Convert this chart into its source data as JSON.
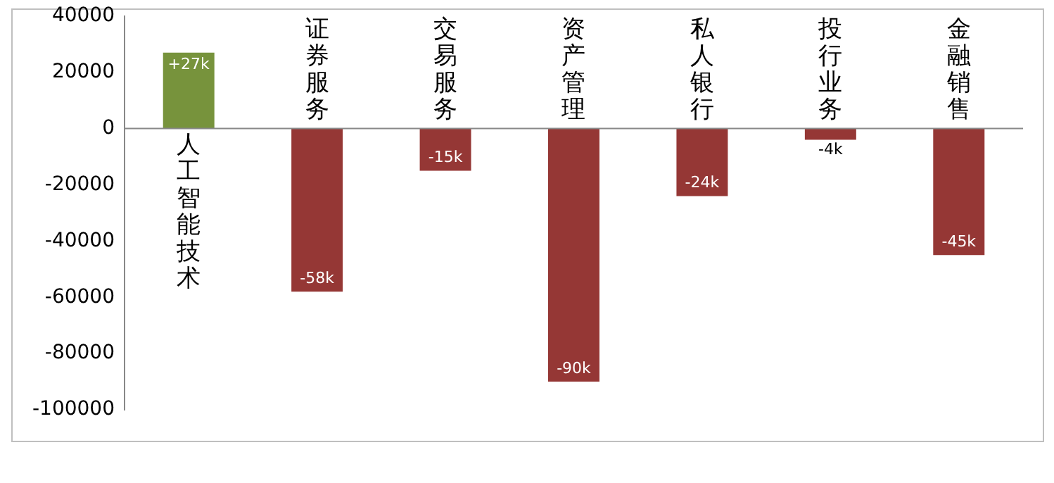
{
  "chart_data": {
    "type": "bar",
    "categories": [
      "人工智能技术",
      "证券服务",
      "交易服务",
      "资产管理",
      "私人银行",
      "投行业务",
      "金融销售"
    ],
    "values": [
      27000,
      -58000,
      -15000,
      -90000,
      -24000,
      -4000,
      -45000
    ],
    "colors": [
      "#77933c",
      "#953735",
      "#953735",
      "#953735",
      "#953735",
      "#953735",
      "#953735"
    ],
    "value_labels": [
      "+27k",
      "-58k",
      "-15k",
      "-90k",
      "-24k",
      "-4k",
      "-45k"
    ],
    "ylim": [
      -100000,
      40000
    ],
    "yticks": [
      -100000,
      -80000,
      -60000,
      -40000,
      -20000,
      0,
      20000,
      40000
    ],
    "grid": false,
    "legend": false
  }
}
